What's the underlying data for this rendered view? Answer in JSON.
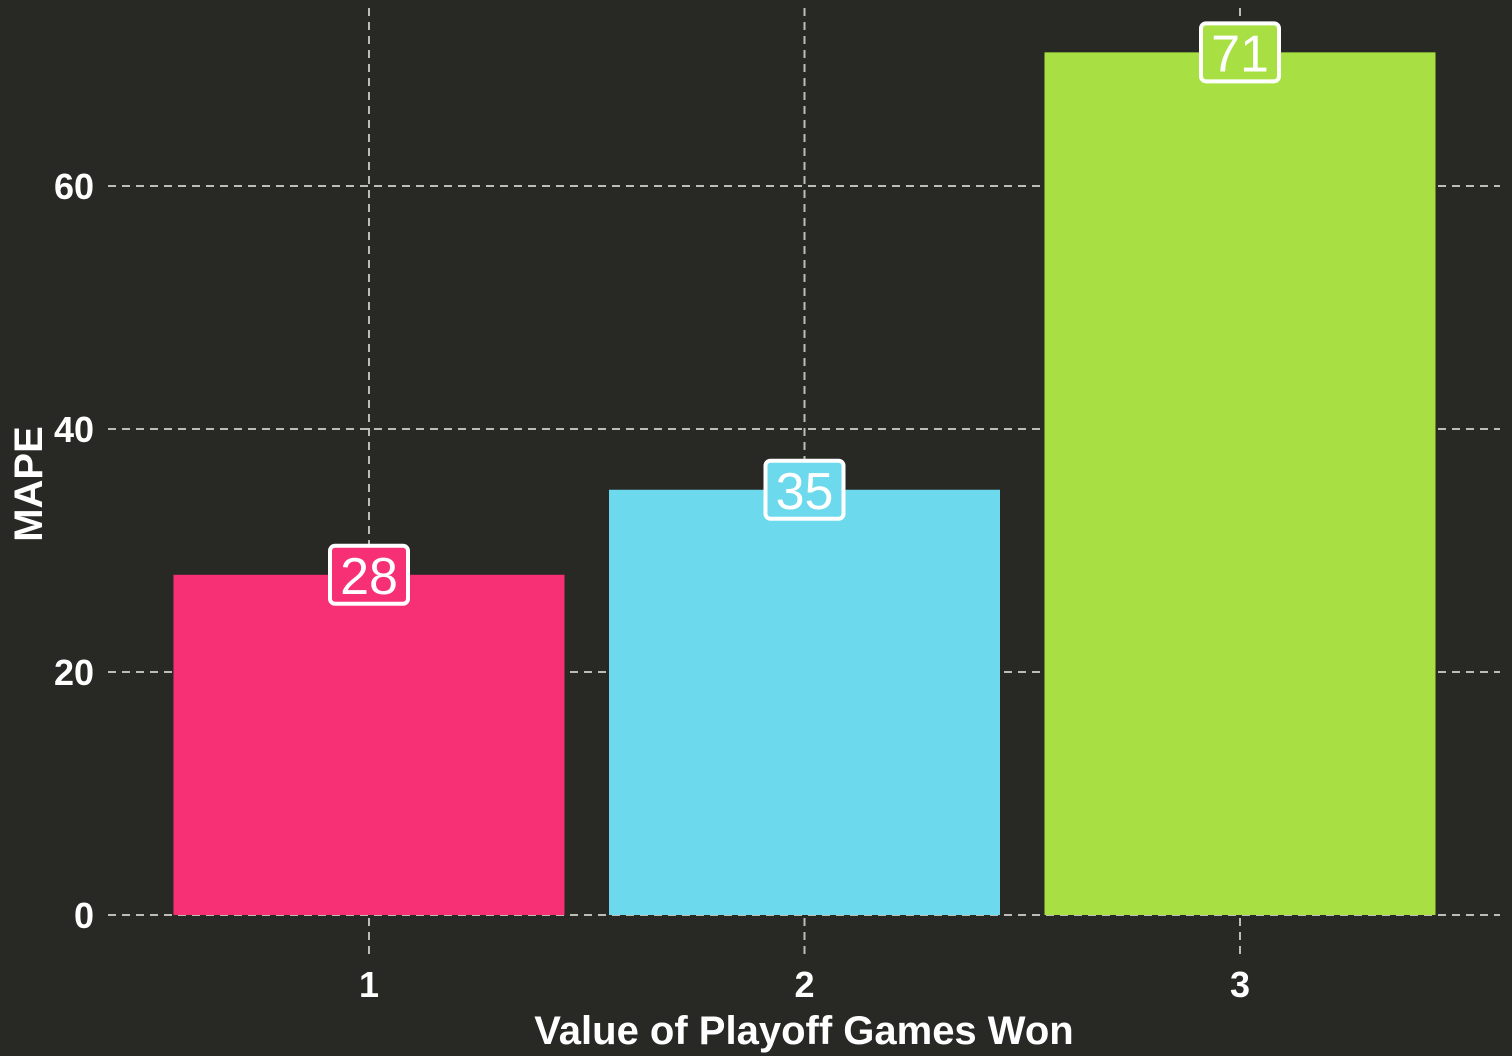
{
  "chart_data": {
    "type": "bar",
    "title": "",
    "xlabel": "Value of Playoff Games Won",
    "ylabel": "MAPE",
    "categories": [
      "1",
      "2",
      "3"
    ],
    "values": [
      28,
      35,
      71
    ],
    "data_labels": [
      "28",
      "35",
      "71"
    ],
    "bar_colors": [
      "#f72f74",
      "#6cd9ed",
      "#a8e043"
    ],
    "ylim": [
      0,
      73
    ],
    "yticks": [
      0,
      20,
      40,
      60
    ],
    "ytick_labels": [
      "0",
      "20",
      "40",
      "60"
    ],
    "grid": true,
    "legend": "none",
    "colors": {
      "background": "#282825",
      "grid": "#bdbdb6",
      "text": "#ffffff"
    }
  }
}
